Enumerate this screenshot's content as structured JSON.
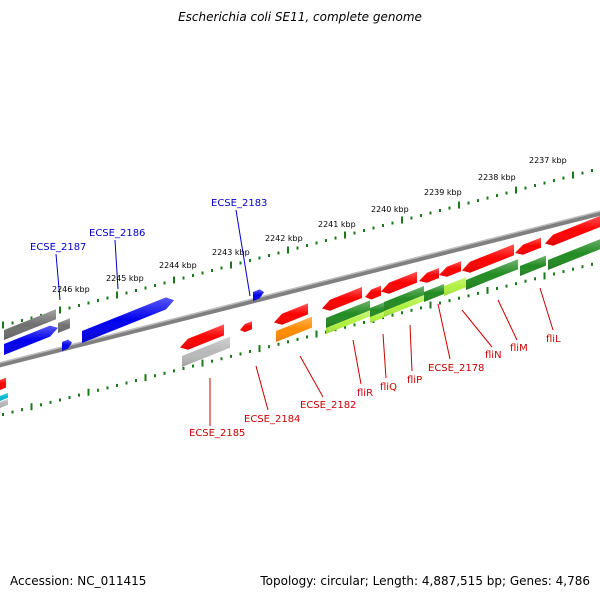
{
  "title": "Escherichia coli SE11, complete genome",
  "footer": {
    "accession": "Accession: NC_011415",
    "summary": "Topology: circular; Length: 4,887,515 bp; Genes: 4,786"
  },
  "colors": {
    "backbone": "#808080",
    "tick": "#1a7a1a",
    "label_blue": "#0000cc",
    "label_red": "#cc0000",
    "red": "#ff0000",
    "blue": "#0000ee",
    "gray": "#707070",
    "light_gray": "#b8b8b8",
    "orange": "#ff8c00",
    "green": "#228b22",
    "lime": "#b0f040",
    "cyan": "#00bcd4"
  },
  "scale_labels": [
    "2246 kbp",
    "2245 kbp",
    "2244 kbp",
    "2243 kbp",
    "2242 kbp",
    "2241 kbp",
    "2240 kbp",
    "2239 kbp",
    "2238 kbp",
    "2237 kbp"
  ],
  "labels_above": [
    "ECSE_2187",
    "ECSE_2186",
    "ECSE_2183"
  ],
  "labels_below": [
    "ECSE_2185",
    "ECSE_2184",
    "ECSE_2182",
    "fliR",
    "fliQ",
    "fliP",
    "ECSE_2178",
    "fliN",
    "fliM",
    "fliL"
  ]
}
